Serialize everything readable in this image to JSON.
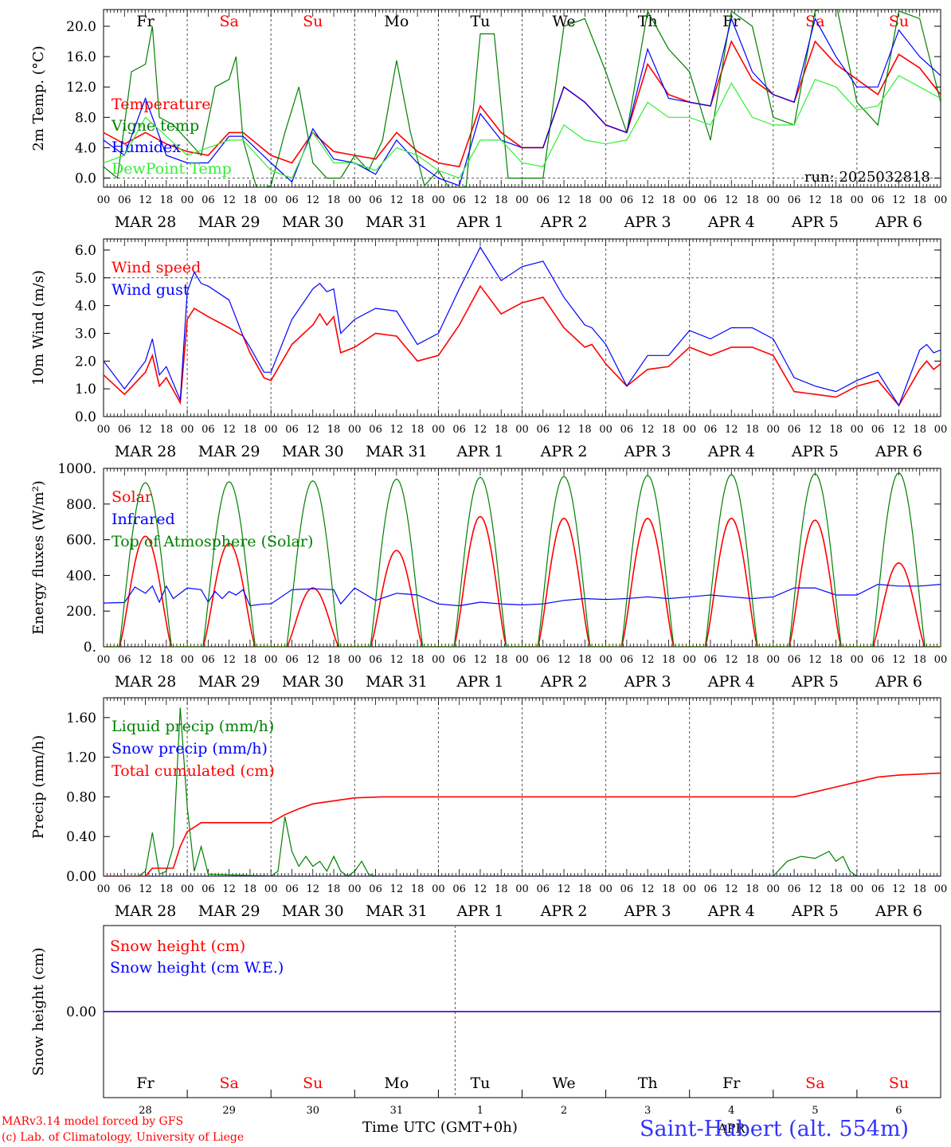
{
  "chart_data": [
    {
      "type": "line",
      "ylabel": "2m Temp. (°C)",
      "ylim": [
        -1.2,
        22.2
      ],
      "yticks": [
        0.0,
        4.0,
        8.0,
        12.0,
        16.0,
        20.0
      ],
      "ytick_labels": [
        "0.0",
        "4.0",
        "8.0",
        "12.0",
        "16.0",
        "20.0"
      ],
      "ref_lines": [
        0
      ],
      "grid": "vertical dashed at 00 UTC",
      "legend_position": "upper-left",
      "annotation": "run: 2025032818",
      "series": [
        {
          "name": "Temperature",
          "color": "#ff0000",
          "t": [
            0,
            6,
            12,
            18,
            24,
            30,
            36,
            40,
            48,
            54,
            60,
            66,
            72,
            78,
            84,
            90,
            96,
            102,
            108,
            114,
            120,
            126,
            132,
            138,
            144,
            150,
            156,
            162,
            168,
            174,
            180,
            186,
            192,
            198,
            204,
            210,
            216,
            222,
            228,
            234,
            240
          ],
          "values": [
            6,
            4.5,
            6,
            4.5,
            3.5,
            3,
            6,
            6,
            3,
            2,
            6,
            3.5,
            3,
            2.5,
            6,
            3.5,
            2,
            1.5,
            9.5,
            6,
            4,
            4,
            12,
            10,
            7,
            6,
            15,
            11,
            10,
            9.5,
            18,
            13,
            11,
            10,
            18,
            15,
            13,
            11,
            16.3,
            14.5,
            11
          ]
        },
        {
          "name": "Vigne temp",
          "color": "#008000",
          "t": [
            0,
            4,
            8,
            12,
            14,
            16,
            20,
            24,
            28,
            32,
            36,
            38,
            40,
            44,
            48,
            52,
            56,
            60,
            64,
            68,
            72,
            76,
            80,
            84,
            88,
            92,
            96,
            100,
            104,
            108,
            112,
            116,
            120,
            126,
            132,
            138,
            144,
            150,
            156,
            162,
            168,
            174,
            180,
            186,
            192,
            198,
            204,
            210,
            216,
            222,
            228,
            234,
            240
          ],
          "values": [
            1.5,
            0,
            14,
            15,
            20,
            8,
            7,
            5,
            3,
            12,
            13,
            16,
            5,
            -1.5,
            -1,
            6,
            12,
            2,
            0,
            0,
            3,
            1,
            5,
            15.5,
            6,
            -1,
            1,
            -2,
            -1,
            19,
            19,
            0,
            0,
            0,
            20,
            21,
            14,
            6,
            22,
            17,
            14,
            5,
            22,
            20,
            8,
            7,
            22,
            23,
            10,
            7,
            22,
            21,
            10
          ]
        },
        {
          "name": "Humidex",
          "color": "#0000ff",
          "t": [
            0,
            6,
            12,
            18,
            24,
            30,
            36,
            40,
            48,
            54,
            60,
            66,
            72,
            78,
            84,
            90,
            96,
            102,
            108,
            114,
            120,
            126,
            132,
            138,
            144,
            150,
            156,
            162,
            168,
            174,
            180,
            186,
            192,
            198,
            204,
            210,
            216,
            222,
            228,
            234,
            240
          ],
          "values": [
            5,
            3,
            10.5,
            3,
            2,
            2,
            5.5,
            5.5,
            2,
            -0.5,
            6.5,
            2.5,
            2,
            0.5,
            5,
            2,
            0,
            -1,
            8.5,
            5,
            4,
            4,
            12,
            10,
            7,
            6,
            17,
            10.5,
            10,
            9.5,
            21,
            14,
            11,
            10,
            21,
            16,
            12,
            12,
            19.5,
            16,
            13.5
          ]
        },
        {
          "name": "DewPoint Temp",
          "color": "#33ee33",
          "t": [
            0,
            6,
            12,
            18,
            24,
            30,
            36,
            40,
            48,
            54,
            60,
            66,
            72,
            78,
            84,
            90,
            96,
            102,
            108,
            114,
            120,
            126,
            132,
            138,
            144,
            150,
            156,
            162,
            168,
            174,
            180,
            186,
            192,
            198,
            204,
            210,
            216,
            222,
            228,
            234,
            240
          ],
          "values": [
            2,
            3,
            8,
            5.5,
            3,
            4,
            5,
            5,
            1,
            0,
            6,
            2,
            2,
            1,
            4,
            3,
            1,
            0,
            5,
            5,
            2,
            1.5,
            7,
            5,
            4.5,
            5,
            10,
            8,
            8,
            7,
            12.5,
            8,
            7,
            7,
            13,
            12,
            9,
            9.5,
            13.5,
            12,
            10.5
          ]
        }
      ]
    },
    {
      "type": "line",
      "ylabel": "10m Wind (m/s)",
      "ylim": [
        0,
        6.4
      ],
      "yticks": [
        0.0,
        1.0,
        2.0,
        3.0,
        4.0,
        5.0,
        6.0
      ],
      "ytick_labels": [
        "0.0",
        "1.0",
        "2.0",
        "3.0",
        "4.0",
        "5.0",
        "6.0"
      ],
      "ref_lines": [
        5
      ],
      "grid": "vertical dashed at 00 UTC",
      "legend_position": "upper-left",
      "series": [
        {
          "name": "Wind speed",
          "color": "#ff0000",
          "t": [
            0,
            6,
            12,
            14,
            16,
            18,
            22,
            24,
            26,
            30,
            36,
            40,
            42,
            46,
            48,
            54,
            60,
            62,
            64,
            66,
            68,
            72,
            78,
            84,
            90,
            96,
            102,
            108,
            114,
            120,
            126,
            132,
            138,
            140,
            144,
            150,
            156,
            162,
            168,
            174,
            180,
            186,
            192,
            198,
            204,
            210,
            216,
            222,
            228,
            234,
            236,
            238,
            240
          ],
          "values": [
            1.5,
            0.8,
            1.6,
            2.2,
            1.1,
            1.4,
            0.5,
            3.5,
            3.9,
            3.6,
            3.2,
            2.9,
            2.3,
            1.4,
            1.3,
            2.6,
            3.3,
            3.7,
            3.3,
            3.6,
            2.3,
            2.5,
            3,
            2.9,
            2,
            2.2,
            3.3,
            4.7,
            3.7,
            4.1,
            4.3,
            3.2,
            2.5,
            2.6,
            1.9,
            1.1,
            1.7,
            1.8,
            2.5,
            2.2,
            2.5,
            2.5,
            2.2,
            0.9,
            0.8,
            0.7,
            1.1,
            1.3,
            0.4,
            1.7,
            2.0,
            1.7,
            1.9
          ]
        },
        {
          "name": "Wind gust",
          "color": "#0000ff",
          "t": [
            0,
            6,
            12,
            14,
            16,
            18,
            22,
            24,
            26,
            28,
            30,
            36,
            40,
            42,
            46,
            48,
            54,
            60,
            62,
            64,
            66,
            68,
            72,
            78,
            84,
            90,
            96,
            102,
            108,
            114,
            120,
            126,
            132,
            138,
            140,
            144,
            150,
            156,
            162,
            168,
            174,
            180,
            186,
            192,
            198,
            204,
            210,
            216,
            222,
            228,
            234,
            236,
            238,
            240
          ],
          "values": [
            2,
            1,
            2,
            2.8,
            1.5,
            1.8,
            0.6,
            4.5,
            5.2,
            4.8,
            4.7,
            4.2,
            2.9,
            2.5,
            1.6,
            1.6,
            3.5,
            4.6,
            4.8,
            4.5,
            4.6,
            3,
            3.5,
            3.9,
            3.8,
            2.6,
            3,
            4.6,
            6.1,
            4.9,
            5.4,
            5.6,
            4.3,
            3.3,
            3.2,
            2.6,
            1.1,
            2.2,
            2.2,
            3.1,
            2.8,
            3.2,
            3.2,
            2.8,
            1.4,
            1.1,
            0.9,
            1.3,
            1.6,
            0.4,
            2.4,
            2.6,
            2.3,
            2.4
          ]
        }
      ]
    },
    {
      "type": "line",
      "ylabel": "Energy fluxes (W/m²)",
      "ylim": [
        0,
        1000
      ],
      "yticks": [
        0,
        200,
        400,
        600,
        800,
        1000
      ],
      "ytick_labels": [
        "0.",
        "200.",
        "400.",
        "600.",
        "800.",
        "1000."
      ],
      "grid": "vertical dashed at 00 UTC",
      "legend_position": "upper-left",
      "series": [
        {
          "name": "Solar",
          "color": "#ff0000",
          "daily_peaks": [
            620,
            580,
            330,
            540,
            730,
            720,
            720,
            720,
            710,
            470
          ],
          "daily_peak_hour_utc": 12
        },
        {
          "name": "Infrared",
          "color": "#0000ff",
          "t": [
            0,
            6,
            9,
            12,
            14,
            16,
            18,
            20,
            24,
            28,
            30,
            32,
            34,
            36,
            38,
            40,
            42,
            46,
            48,
            54,
            60,
            66,
            68,
            72,
            78,
            84,
            90,
            96,
            102,
            108,
            114,
            120,
            126,
            132,
            138,
            144,
            150,
            156,
            162,
            168,
            174,
            180,
            186,
            192,
            198,
            204,
            210,
            216,
            222,
            228,
            234,
            240
          ],
          "values": [
            245,
            248,
            335,
            300,
            340,
            250,
            340,
            270,
            330,
            320,
            250,
            310,
            270,
            310,
            290,
            320,
            230,
            240,
            240,
            320,
            325,
            320,
            240,
            330,
            260,
            300,
            290,
            240,
            230,
            250,
            240,
            235,
            240,
            260,
            270,
            265,
            270,
            280,
            270,
            280,
            290,
            280,
            270,
            280,
            330,
            330,
            290,
            290,
            350,
            340,
            340,
            350
          ]
        },
        {
          "name": "Top of Atmosphere (Solar)",
          "color": "#008000",
          "daily_peaks": [
            920,
            925,
            930,
            940,
            950,
            955,
            960,
            965,
            970,
            975
          ],
          "daily_peak_hour_utc": 12
        }
      ]
    },
    {
      "type": "line",
      "ylabel": "Precip (mm/h)",
      "ylim": [
        0,
        1.8
      ],
      "yticks": [
        0.0,
        0.4,
        0.8,
        1.2,
        1.6
      ],
      "ytick_labels": [
        "0.00",
        "0.40",
        "0.80",
        "1.20",
        "1.60"
      ],
      "grid": "vertical dashed at 00 UTC",
      "legend_position": "upper-left",
      "series": [
        {
          "name": "Liquid precip (mm/h)",
          "color": "#008000",
          "t": [
            0,
            10,
            12,
            14,
            16,
            18,
            20,
            22,
            24,
            26,
            28,
            30,
            48,
            50,
            52,
            54,
            56,
            58,
            60,
            62,
            64,
            66,
            68,
            70,
            72,
            74,
            76,
            78,
            192,
            196,
            200,
            204,
            208,
            210,
            212,
            214,
            216
          ],
          "values": [
            0,
            0,
            0.05,
            0.44,
            0.02,
            0.05,
            0.3,
            1.7,
            0.7,
            0.05,
            0.3,
            0.02,
            0,
            0.05,
            0.6,
            0.25,
            0.1,
            0.2,
            0.1,
            0.15,
            0.05,
            0.2,
            0.05,
            0,
            0.05,
            0.15,
            0.02,
            0,
            0,
            0.15,
            0.2,
            0.18,
            0.25,
            0.15,
            0.2,
            0.05,
            0
          ]
        },
        {
          "name": "Snow precip (mm/h)",
          "color": "#0000ff",
          "t": [
            0,
            240
          ],
          "values": [
            0,
            0
          ]
        },
        {
          "name": "Total cumulated (cm)",
          "color": "#ff0000",
          "t": [
            0,
            12,
            14,
            20,
            22,
            24,
            28,
            48,
            52,
            56,
            60,
            66,
            72,
            80,
            192,
            198,
            204,
            210,
            216,
            222,
            228,
            240
          ],
          "values": [
            0,
            0,
            0.08,
            0.08,
            0.3,
            0.45,
            0.54,
            0.54,
            0.62,
            0.68,
            0.73,
            0.76,
            0.79,
            0.8,
            0.8,
            0.8,
            0.85,
            0.9,
            0.95,
            1.0,
            1.02,
            1.04
          ]
        }
      ]
    },
    {
      "type": "line",
      "ylabel": "Snow height (cm)",
      "ylim": [
        -1,
        1
      ],
      "yticks": [
        0.0
      ],
      "ytick_labels": [
        "0.00"
      ],
      "legend_position": "upper-left",
      "series": [
        {
          "name": "Snow height (cm)",
          "color": "#ff0000",
          "t": [
            0,
            240
          ],
          "values": [
            0,
            0
          ]
        },
        {
          "name": "Snow height (cm W.E.)",
          "color": "#0000ff",
          "t": [
            0,
            240
          ],
          "values": [
            0,
            0
          ]
        }
      ]
    }
  ],
  "x_axis": {
    "hour_labels": [
      "00",
      "06",
      "12",
      "18"
    ],
    "final_hour_label": "00",
    "date_labels": [
      "MAR 28",
      "MAR 29",
      "MAR 30",
      "MAR 31",
      "APR  1",
      "APR  2",
      "APR  3",
      "APR  4",
      "APR  5",
      "APR  6"
    ],
    "weekdays": [
      "Fr",
      "Sa",
      "Su",
      "Mo",
      "Tu",
      "We",
      "Th",
      "Fr",
      "Sa",
      "Su"
    ],
    "weekday_colors": [
      "#000000",
      "#ff0000",
      "#ff0000",
      "#000000",
      "#000000",
      "#000000",
      "#000000",
      "#000000",
      "#ff0000",
      "#ff0000"
    ],
    "day_numbers": [
      "28",
      "29",
      "30",
      "31",
      "1",
      "2",
      "3",
      "4",
      "5",
      "6"
    ],
    "month_label": "APR"
  },
  "footer": {
    "credit_line1": "MARv3.14 model forced by GFS",
    "credit_line2": "(c) Lab. of Climatology, University of Liege",
    "time_label": "Time UTC (GMT+0h)",
    "station": "Saint-Hubert (alt. 554m)"
  },
  "colors": {
    "red": "#ff0000",
    "green": "#008000",
    "blue": "#0000ff",
    "lightgreen": "#33ee33",
    "axis": "#000000"
  }
}
